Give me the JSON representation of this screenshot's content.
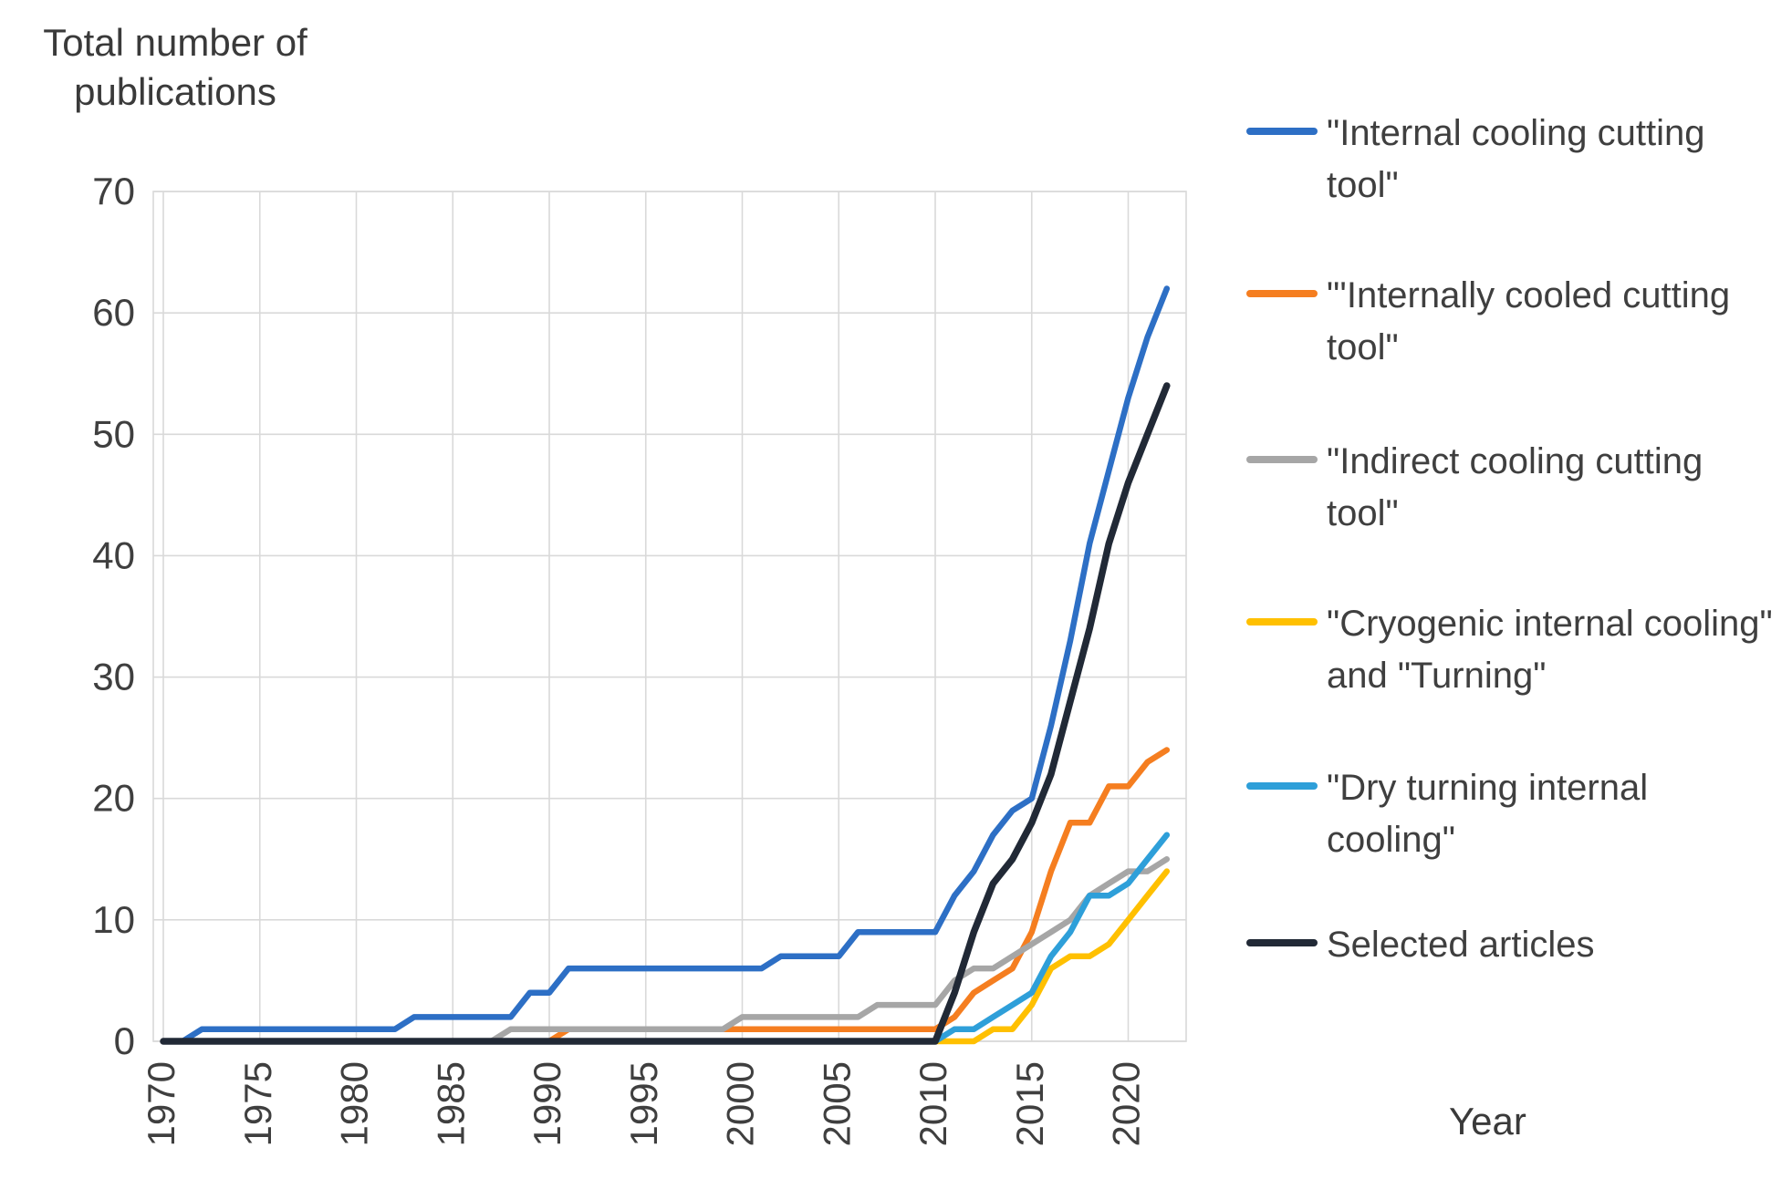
{
  "page": {
    "background": "#FFFFFF",
    "axis_text_color": "#3F3F3F",
    "gridline_color": "#D9D9D9"
  },
  "labels": {
    "title": "Total number of publications",
    "x_axis": "Year"
  },
  "chart_data": {
    "type": "line",
    "title": "Total number of publications",
    "xlabel": "Year",
    "ylabel": "Total number of publications",
    "ylim": [
      0,
      70
    ],
    "grid": true,
    "legend_position": "right",
    "x_ticks": [
      1970,
      1975,
      1980,
      1985,
      1990,
      1995,
      2000,
      2005,
      2010,
      2015,
      2020
    ],
    "y_ticks": [
      0,
      10,
      20,
      30,
      40,
      50,
      60,
      70
    ],
    "x": [
      1970,
      1971,
      1972,
      1973,
      1974,
      1975,
      1976,
      1977,
      1978,
      1979,
      1980,
      1981,
      1982,
      1983,
      1984,
      1985,
      1986,
      1987,
      1988,
      1989,
      1990,
      1991,
      1992,
      1993,
      1994,
      1995,
      1996,
      1997,
      1998,
      1999,
      2000,
      2001,
      2002,
      2003,
      2004,
      2005,
      2006,
      2007,
      2008,
      2009,
      2010,
      2011,
      2012,
      2013,
      2014,
      2015,
      2016,
      2017,
      2018,
      2019,
      2020,
      2021,
      2022
    ],
    "series": [
      {
        "name": "\"Internal cooling cutting tool\"",
        "color": "#2D6FC5",
        "values": [
          0,
          0,
          1,
          1,
          1,
          1,
          1,
          1,
          1,
          1,
          1,
          1,
          1,
          2,
          2,
          2,
          2,
          2,
          2,
          4,
          4,
          6,
          6,
          6,
          6,
          6,
          6,
          6,
          6,
          6,
          6,
          6,
          7,
          7,
          7,
          7,
          9,
          9,
          9,
          9,
          9,
          12,
          14,
          17,
          19,
          20,
          26,
          33,
          41,
          47,
          53,
          58,
          62
        ]
      },
      {
        "name": "\"'Internally cooled cutting tool\"",
        "color": "#F57E20",
        "values": [
          0,
          0,
          0,
          0,
          0,
          0,
          0,
          0,
          0,
          0,
          0,
          0,
          0,
          0,
          0,
          0,
          0,
          0,
          0,
          0,
          0,
          1,
          1,
          1,
          1,
          1,
          1,
          1,
          1,
          1,
          1,
          1,
          1,
          1,
          1,
          1,
          1,
          1,
          1,
          1,
          1,
          2,
          4,
          5,
          6,
          9,
          14,
          18,
          18,
          21,
          21,
          23,
          24
        ]
      },
      {
        "name": "\"Indirect cooling cutting tool\"",
        "color": "#A6A6A6",
        "values": [
          0,
          0,
          0,
          0,
          0,
          0,
          0,
          0,
          0,
          0,
          0,
          0,
          0,
          0,
          0,
          0,
          0,
          0,
          1,
          1,
          1,
          1,
          1,
          1,
          1,
          1,
          1,
          1,
          1,
          1,
          2,
          2,
          2,
          2,
          2,
          2,
          2,
          3,
          3,
          3,
          3,
          5,
          6,
          6,
          7,
          8,
          9,
          10,
          12,
          13,
          14,
          14,
          15
        ]
      },
      {
        "name": "\"Cryogenic internal cooling\" and \"Turning\"",
        "color": "#FFC000",
        "values": [
          0,
          0,
          0,
          0,
          0,
          0,
          0,
          0,
          0,
          0,
          0,
          0,
          0,
          0,
          0,
          0,
          0,
          0,
          0,
          0,
          0,
          0,
          0,
          0,
          0,
          0,
          0,
          0,
          0,
          0,
          0,
          0,
          0,
          0,
          0,
          0,
          0,
          0,
          0,
          0,
          0,
          0,
          0,
          1,
          1,
          3,
          6,
          7,
          7,
          8,
          10,
          12,
          14
        ]
      },
      {
        "name": "\"Dry turning internal cooling\"",
        "color": "#2E9FD9",
        "values": [
          0,
          0,
          0,
          0,
          0,
          0,
          0,
          0,
          0,
          0,
          0,
          0,
          0,
          0,
          0,
          0,
          0,
          0,
          0,
          0,
          0,
          0,
          0,
          0,
          0,
          0,
          0,
          0,
          0,
          0,
          0,
          0,
          0,
          0,
          0,
          0,
          0,
          0,
          0,
          0,
          0,
          1,
          1,
          2,
          3,
          4,
          7,
          9,
          12,
          12,
          13,
          15,
          17
        ]
      },
      {
        "name": "Selected articles",
        "color": "#212936",
        "values": [
          0,
          0,
          0,
          0,
          0,
          0,
          0,
          0,
          0,
          0,
          0,
          0,
          0,
          0,
          0,
          0,
          0,
          0,
          0,
          0,
          0,
          0,
          0,
          0,
          0,
          0,
          0,
          0,
          0,
          0,
          0,
          0,
          0,
          0,
          0,
          0,
          0,
          0,
          0,
          0,
          0,
          4,
          9,
          13,
          15,
          18,
          22,
          28,
          34,
          41,
          46,
          50,
          54
        ]
      }
    ]
  }
}
